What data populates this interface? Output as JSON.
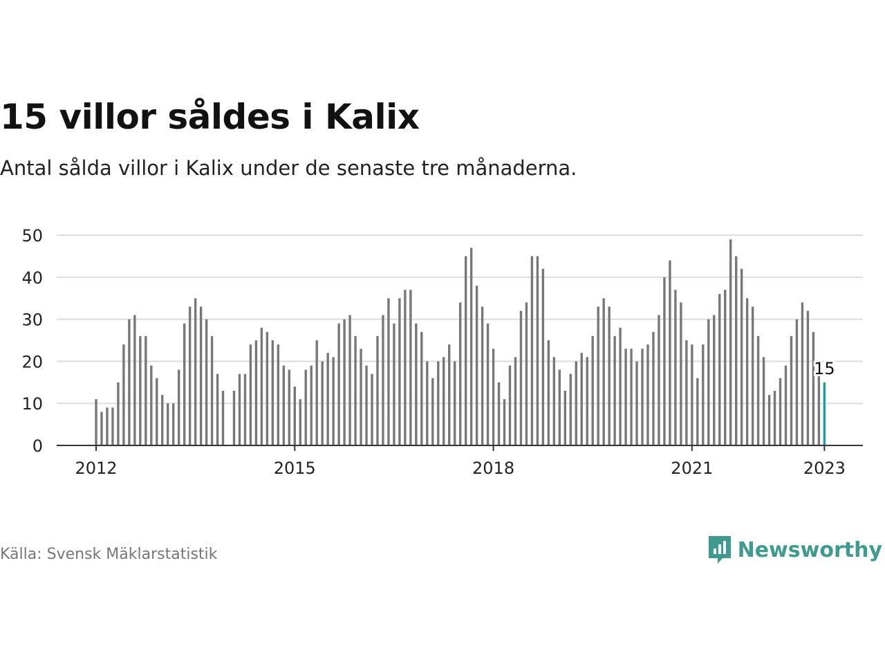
{
  "title": "15 villor såldes i Kalix",
  "subtitle": "Antal sålda villor i Kalix under de senaste tre månaderna.",
  "source": "Källa: Svensk Mäklarstatistik",
  "brand": {
    "name": "Newsworthy",
    "icon": "newsworthy-logo-icon"
  },
  "colors": {
    "bar": "#777777",
    "highlight": "#1a9e96",
    "grid": "#dddddd",
    "axis": "#333333",
    "brand": "#3f9b90"
  },
  "chart_data": {
    "type": "bar",
    "title": "15 villor såldes i Kalix",
    "xlabel": "",
    "ylabel": "",
    "ylim": [
      0,
      50
    ],
    "yticks": [
      0,
      10,
      20,
      30,
      40,
      50
    ],
    "xticks": [
      {
        "label": "2012",
        "index": 0
      },
      {
        "label": "2015",
        "index": 36
      },
      {
        "label": "2018",
        "index": 72
      },
      {
        "label": "2021",
        "index": 108
      },
      {
        "label": "2023",
        "index": 132
      }
    ],
    "start": "2012-01",
    "frequency": "monthly",
    "values": [
      11,
      8,
      9,
      9,
      15,
      24,
      30,
      31,
      26,
      26,
      19,
      16,
      12,
      10,
      10,
      18,
      29,
      33,
      35,
      33,
      30,
      26,
      17,
      13,
      null,
      13,
      17,
      17,
      24,
      25,
      28,
      27,
      25,
      24,
      19,
      18,
      14,
      11,
      18,
      19,
      25,
      20,
      22,
      21,
      29,
      30,
      31,
      26,
      23,
      19,
      17,
      26,
      31,
      35,
      29,
      35,
      37,
      37,
      29,
      27,
      20,
      16,
      20,
      21,
      24,
      20,
      34,
      45,
      47,
      38,
      33,
      29,
      23,
      15,
      11,
      19,
      21,
      32,
      34,
      45,
      45,
      42,
      25,
      21,
      18,
      13,
      17,
      20,
      22,
      21,
      26,
      33,
      35,
      33,
      26,
      28,
      23,
      23,
      20,
      23,
      24,
      27,
      31,
      40,
      44,
      37,
      34,
      25,
      24,
      16,
      24,
      30,
      31,
      36,
      37,
      49,
      45,
      42,
      35,
      33,
      26,
      21,
      12,
      13,
      16,
      19,
      26,
      30,
      34,
      32,
      27,
      17,
      15
    ],
    "highlight": {
      "index": 132,
      "value": 15,
      "label": "15"
    }
  }
}
